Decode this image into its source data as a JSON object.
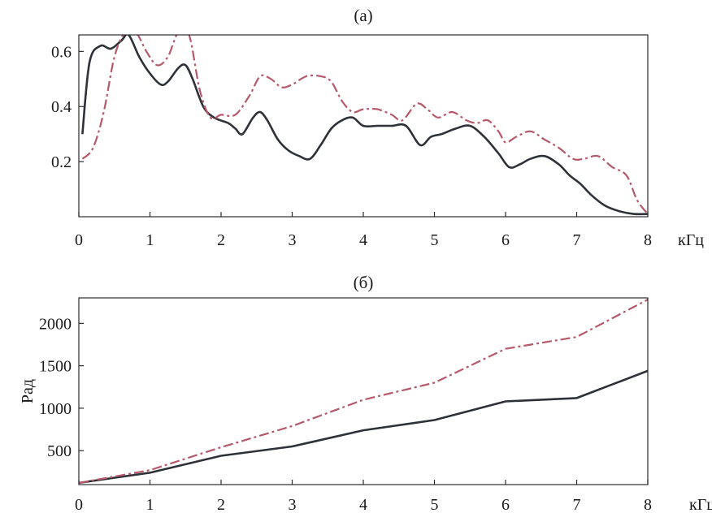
{
  "chart_data": [
    {
      "type": "line",
      "title": "(a)",
      "xlabel": "",
      "ylabel": "",
      "x_unit": "кГц",
      "xlim": [
        0,
        8
      ],
      "ylim": [
        0,
        0.66
      ],
      "x_ticks": [
        0,
        1,
        2,
        3,
        4,
        5,
        6,
        7,
        8
      ],
      "y_ticks": [
        0.2,
        0.4,
        0.6
      ],
      "x_tick_labels": [
        "0",
        "1",
        "2",
        "3",
        "4",
        "5",
        "6",
        "7",
        "8"
      ],
      "y_tick_labels": [
        "0.2",
        "0.4",
        "0.6"
      ],
      "grid": false,
      "series": [
        {
          "style": "solid",
          "color": "#2e3138",
          "x": [
            0.05,
            0.15,
            0.3,
            0.45,
            0.6,
            0.7,
            0.85,
            1.0,
            1.15,
            1.25,
            1.4,
            1.5,
            1.6,
            1.75,
            1.9,
            2.1,
            2.2,
            2.3,
            2.45,
            2.55,
            2.65,
            2.8,
            2.95,
            3.1,
            3.25,
            3.4,
            3.55,
            3.7,
            3.85,
            4.0,
            4.2,
            4.4,
            4.6,
            4.8,
            4.95,
            5.1,
            5.3,
            5.5,
            5.7,
            5.9,
            6.05,
            6.2,
            6.35,
            6.55,
            6.75,
            6.9,
            7.05,
            7.2,
            7.4,
            7.6,
            7.8,
            8.0
          ],
          "y": [
            0.3,
            0.56,
            0.62,
            0.61,
            0.64,
            0.66,
            0.58,
            0.52,
            0.48,
            0.49,
            0.54,
            0.55,
            0.5,
            0.4,
            0.36,
            0.34,
            0.32,
            0.3,
            0.36,
            0.38,
            0.35,
            0.28,
            0.24,
            0.22,
            0.21,
            0.26,
            0.32,
            0.35,
            0.36,
            0.33,
            0.33,
            0.33,
            0.33,
            0.26,
            0.29,
            0.3,
            0.32,
            0.33,
            0.29,
            0.23,
            0.18,
            0.19,
            0.21,
            0.22,
            0.19,
            0.15,
            0.12,
            0.08,
            0.04,
            0.02,
            0.01,
            0.01
          ]
        },
        {
          "style": "dash-dot",
          "color": "#b5596a",
          "x": [
            0.05,
            0.2,
            0.35,
            0.5,
            0.65,
            0.8,
            0.95,
            1.1,
            1.25,
            1.4,
            1.55,
            1.7,
            1.85,
            2.0,
            2.2,
            2.4,
            2.55,
            2.7,
            2.85,
            3.0,
            3.2,
            3.4,
            3.55,
            3.7,
            3.85,
            4.0,
            4.2,
            4.4,
            4.55,
            4.75,
            4.9,
            5.05,
            5.25,
            5.45,
            5.6,
            5.75,
            5.9,
            6.0,
            6.15,
            6.35,
            6.55,
            6.75,
            6.95,
            7.1,
            7.3,
            7.5,
            7.7,
            7.85,
            8.0
          ],
          "y": [
            0.21,
            0.25,
            0.38,
            0.58,
            0.67,
            0.67,
            0.6,
            0.55,
            0.58,
            0.67,
            0.66,
            0.46,
            0.36,
            0.37,
            0.37,
            0.44,
            0.51,
            0.5,
            0.47,
            0.48,
            0.51,
            0.51,
            0.49,
            0.42,
            0.38,
            0.39,
            0.39,
            0.37,
            0.35,
            0.41,
            0.39,
            0.36,
            0.38,
            0.35,
            0.34,
            0.35,
            0.31,
            0.27,
            0.29,
            0.31,
            0.28,
            0.25,
            0.21,
            0.21,
            0.22,
            0.18,
            0.15,
            0.06,
            0.01
          ]
        }
      ]
    },
    {
      "type": "line",
      "title": "(б)",
      "xlabel": "",
      "ylabel": "Рад",
      "x_unit": "кГц",
      "xlim": [
        0,
        8
      ],
      "ylim": [
        100,
        2300
      ],
      "x_ticks": [
        0,
        1,
        2,
        3,
        4,
        5,
        6,
        7,
        8
      ],
      "y_ticks": [
        500,
        1000,
        1500,
        2000
      ],
      "x_tick_labels": [
        "0",
        "1",
        "2",
        "3",
        "4",
        "5",
        "6",
        "7",
        "8"
      ],
      "y_tick_labels": [
        "500",
        "1000",
        "1500",
        "2000"
      ],
      "grid": false,
      "series": [
        {
          "style": "solid",
          "color": "#2e3138",
          "x": [
            0,
            1,
            2,
            3,
            4,
            5,
            6,
            7,
            8
          ],
          "y": [
            120,
            240,
            440,
            550,
            740,
            860,
            1080,
            1120,
            1440
          ]
        },
        {
          "style": "dash-dot",
          "color": "#b5596a",
          "x": [
            0,
            1,
            2,
            3,
            4,
            5,
            6,
            7,
            8
          ],
          "y": [
            120,
            270,
            540,
            790,
            1100,
            1300,
            1700,
            1840,
            2280
          ]
        }
      ]
    }
  ]
}
